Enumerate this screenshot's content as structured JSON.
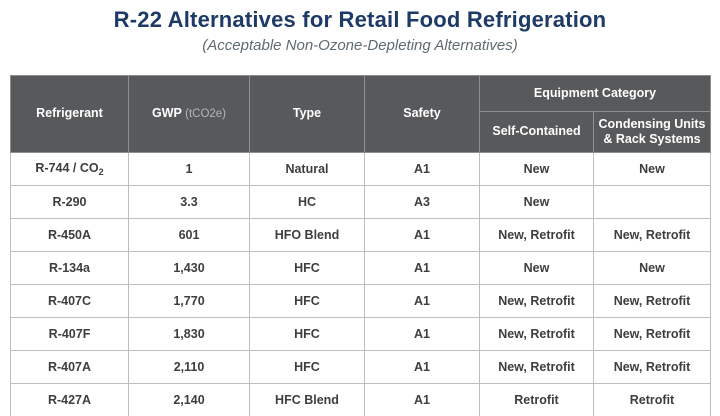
{
  "title": "R-22 Alternatives for Retail Food Refrigeration",
  "subtitle": "(Acceptable Non-Ozone-Depleting Alternatives)",
  "colors": {
    "title_navy": "#1e3a66",
    "subtitle_gray": "#5d6b73",
    "header_bg": "#58595b",
    "header_text": "#ffffff",
    "header_unit_text": "#b3b5b8",
    "body_text": "#3e3e40",
    "body_border": "#bcbec0",
    "header_border": "#8d8f92"
  },
  "chart_data": {
    "type": "table",
    "header": {
      "refrigerant": "Refrigerant",
      "gwp": "GWP",
      "gwp_unit": "(tCO2e)",
      "type": "Type",
      "safety": "Safety",
      "equipment_category": "Equipment Category",
      "self_contained": "Self-Contained",
      "condensing_units": "Condensing Units & Rack Systems"
    },
    "rows": [
      {
        "refrigerant": "R-744 / CO₂",
        "gwp": "1",
        "type": "Natural",
        "safety": "A1",
        "self_contained": "New",
        "condensing_units": "New"
      },
      {
        "refrigerant": "R-290",
        "gwp": "3.3",
        "type": "HC",
        "safety": "A3",
        "self_contained": "New",
        "condensing_units": ""
      },
      {
        "refrigerant": "R-450A",
        "gwp": "601",
        "type": "HFO Blend",
        "safety": "A1",
        "self_contained": "New, Retrofit",
        "condensing_units": "New, Retrofit"
      },
      {
        "refrigerant": "R-134a",
        "gwp": "1,430",
        "type": "HFC",
        "safety": "A1",
        "self_contained": "New",
        "condensing_units": "New"
      },
      {
        "refrigerant": "R-407C",
        "gwp": "1,770",
        "type": "HFC",
        "safety": "A1",
        "self_contained": "New, Retrofit",
        "condensing_units": "New, Retrofit"
      },
      {
        "refrigerant": "R-407F",
        "gwp": "1,830",
        "type": "HFC",
        "safety": "A1",
        "self_contained": "New, Retrofit",
        "condensing_units": "New, Retrofit"
      },
      {
        "refrigerant": "R-407A",
        "gwp": "2,110",
        "type": "HFC",
        "safety": "A1",
        "self_contained": "New, Retrofit",
        "condensing_units": "New, Retrofit"
      },
      {
        "refrigerant": "R-427A",
        "gwp": "2,140",
        "type": "HFC Blend",
        "safety": "A1",
        "self_contained": "Retrofit",
        "condensing_units": "Retrofit"
      }
    ]
  }
}
